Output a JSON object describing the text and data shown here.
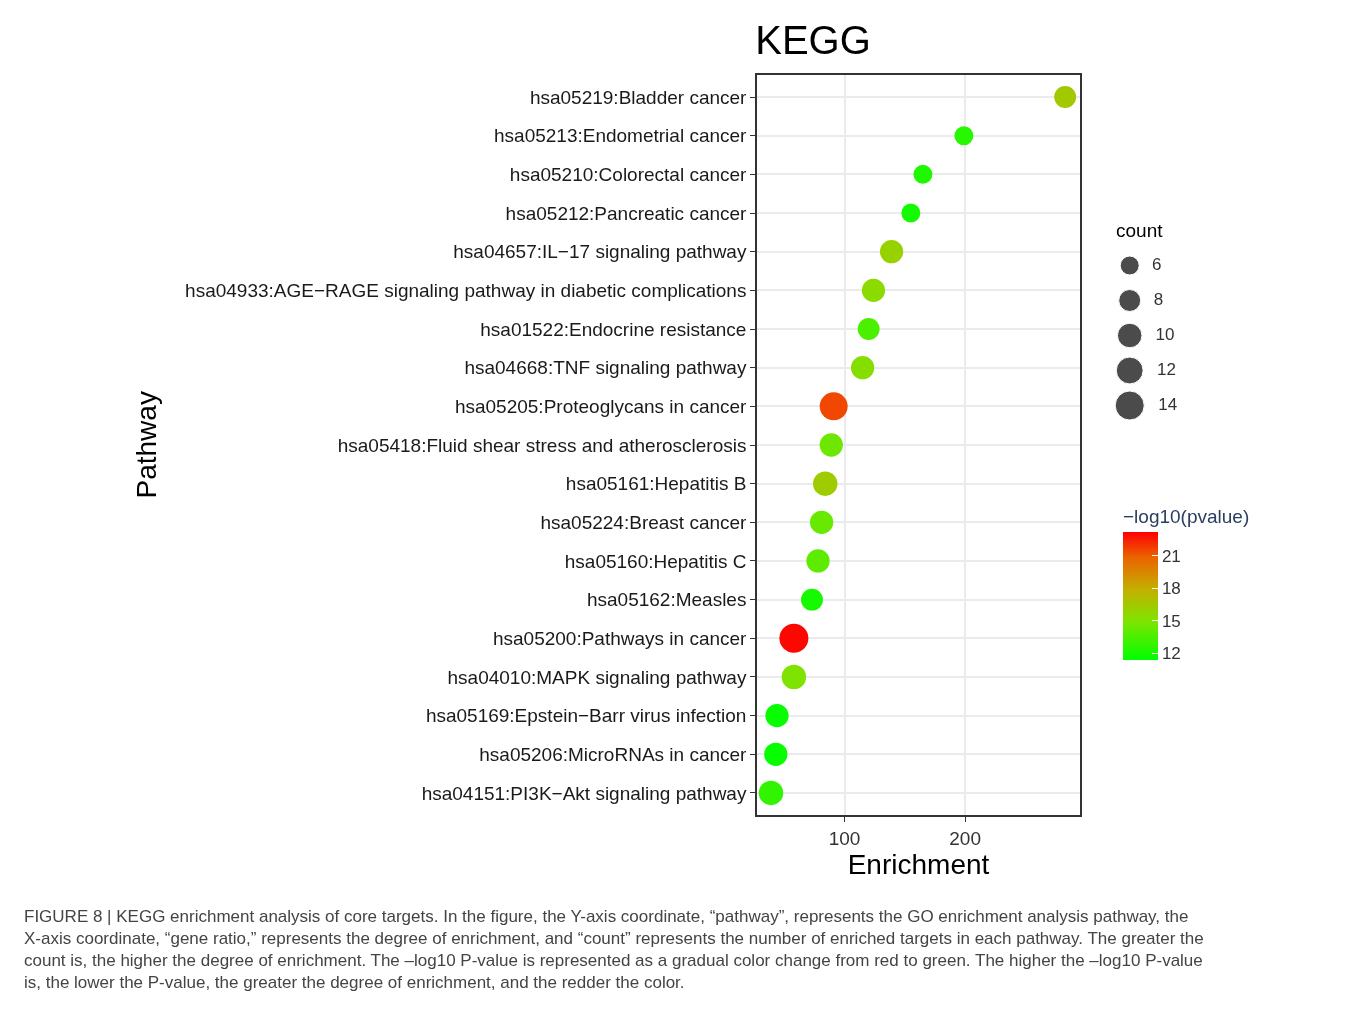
{
  "chart_data": {
    "type": "bubble",
    "title": "KEGG",
    "xlabel": "Enrichment",
    "ylabel": "Pathway",
    "legend_title": "count",
    "clabel": "−log10(pvalue)",
    "categories": [
      "hsa05219:Bladder cancer",
      "hsa05213:Endometrial cancer",
      "hsa05210:Colorectal cancer",
      "hsa05212:Pancreatic cancer",
      "hsa04657:IL−17 signaling pathway",
      "hsa04933:AGE−RAGE signaling pathway in diabetic complications",
      "hsa01522:Endocrine resistance",
      "hsa04668:TNF signaling pathway",
      "hsa05205:Proteoglycans in cancer",
      "hsa05418:Fluid shear stress and atherosclerosis",
      "hsa05161:Hepatitis B",
      "hsa05224:Breast cancer",
      "hsa05160:Hepatitis C",
      "hsa05162:Measles",
      "hsa05200:Pathways in cancer",
      "hsa04010:MAPK signaling pathway",
      "hsa05169:Epstein−Barr virus infection",
      "hsa05206:MicroRNAs in cancer",
      "hsa04151:PI3K−Akt signaling pathway"
    ],
    "orientation": "horizontal",
    "values": [
      283,
      199,
      165,
      155,
      139,
      124,
      120,
      115,
      91,
      89,
      84,
      81,
      78,
      73,
      58,
      58,
      44,
      43,
      39
    ],
    "sizes": [
      8,
      6,
      6,
      6,
      9,
      9,
      8,
      9,
      13,
      9,
      10,
      9,
      9,
      8,
      14,
      10,
      9,
      9,
      10
    ],
    "size_legend": [
      6,
      8,
      10,
      12,
      14
    ],
    "cvalues": [
      16.5,
      12.5,
      12.3,
      12,
      16,
      15.5,
      13.5,
      15.3,
      21.5,
      14.5,
      16.3,
      14.3,
      14,
      12,
      23,
      15,
      11.6,
      11.6,
      12.8
    ],
    "clim": [
      11.4,
      23.2
    ],
    "cticks": [
      12,
      15,
      18,
      21
    ],
    "xlim": [
      27.4,
      295.3
    ],
    "xticks": [
      100,
      200
    ],
    "grid": true,
    "marker": "circle",
    "annotations": [
      "FIGURE 8 | KEGG enrichment analysis of core targets. In the figure, the Y-axis coordinate, “pathway”, represents the GO enrichment analysis pathway, the X-axis coordinate, “gene ratio,” represents the degree of enrichment, and “count” represents the number of enriched targets in each pathway. The greater the count is, the higher the degree of enrichment. The –log10 P-value is represented as a gradual color change from red to green. The higher the –log10 P-value is, the lower the P-value, the greater the degree of enrichment, and the redder the color."
    ]
  }
}
